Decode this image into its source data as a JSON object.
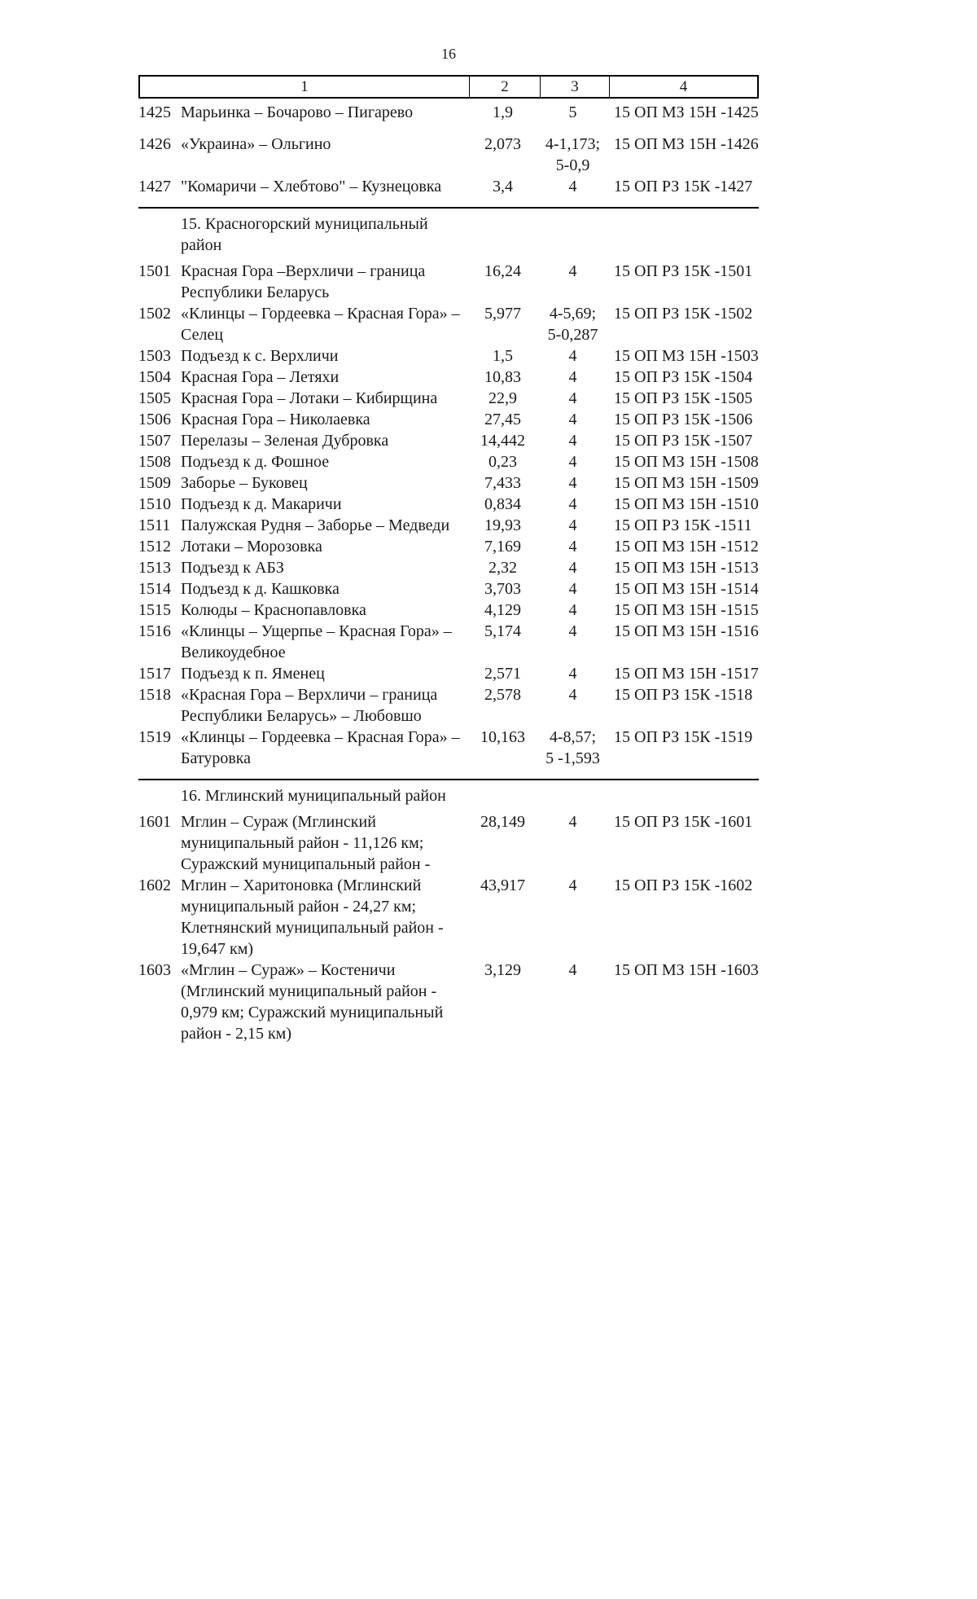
{
  "page": {
    "number": "16"
  },
  "table": {
    "columns": [
      "1",
      "2",
      "3",
      "4"
    ],
    "rows": [
      {
        "id": "1425",
        "name": "Марьинка – Бочарово – Пигарево",
        "length": "1,9",
        "category": "5",
        "reg": "15 ОП МЗ 15Н -1425"
      },
      {
        "id": "1426",
        "name": "«Украина» – Ольгино",
        "length": "2,073",
        "category": "4-1,173;\n5-0,9",
        "reg": "15 ОП МЗ 15Н -1426"
      },
      {
        "id": "1427",
        "name": "\"Комаричи – Хлебтово\" – Кузнецовка",
        "length": "3,4",
        "category": "4",
        "reg": "15 ОП РЗ 15К -1427"
      },
      {
        "section": "15. Красногорский муниципальный\nрайон"
      },
      {
        "id": "1501",
        "name": "Красная Гора –Верхличи – граница\nРеспублики Беларусь",
        "length": "16,24",
        "category": "4",
        "reg": "15 ОП РЗ 15К -1501"
      },
      {
        "id": "1502",
        "name": "«Клинцы – Гордеевка – Красная Гора» –\nСелец",
        "length": "5,977",
        "category": "4-5,69;\n5-0,287",
        "reg": "15 ОП РЗ 15К -1502"
      },
      {
        "id": "1503",
        "name": "Подъезд к с. Верхличи",
        "length": "1,5",
        "category": "4",
        "reg": "15 ОП МЗ 15Н -1503"
      },
      {
        "id": "1504",
        "name": "Красная Гора – Летяхи",
        "length": "10,83",
        "category": "4",
        "reg": "15 ОП РЗ 15К -1504"
      },
      {
        "id": "1505",
        "name": "Красная Гора – Лотаки – Кибирщина",
        "length": "22,9",
        "category": "4",
        "reg": "15 ОП РЗ 15К -1505"
      },
      {
        "id": "1506",
        "name": "Красная Гора – Николаевка",
        "length": "27,45",
        "category": "4",
        "reg": "15 ОП РЗ 15К -1506"
      },
      {
        "id": "1507",
        "name": "Перелазы – Зеленая Дубровка",
        "length": "14,442",
        "category": "4",
        "reg": "15 ОП РЗ 15К -1507"
      },
      {
        "id": "1508",
        "name": "Подъезд к д. Фошное",
        "length": "0,23",
        "category": "4",
        "reg": "15 ОП МЗ 15Н -1508"
      },
      {
        "id": "1509",
        "name": "Заборье – Буковец",
        "length": "7,433",
        "category": "4",
        "reg": "15 ОП МЗ 15Н -1509"
      },
      {
        "id": "1510",
        "name": "Подъезд к д. Макаричи",
        "length": "0,834",
        "category": "4",
        "reg": "15 ОП МЗ 15Н -1510"
      },
      {
        "id": "1511",
        "name": "Палужская Рудня – Заборье – Медведи",
        "length": "19,93",
        "category": "4",
        "reg": "15 ОП РЗ 15К -1511"
      },
      {
        "id": "1512",
        "name": "Лотаки – Морозовка",
        "length": "7,169",
        "category": "4",
        "reg": "15 ОП МЗ 15Н -1512"
      },
      {
        "id": "1513",
        "name": "Подъезд к АБЗ",
        "length": "2,32",
        "category": "4",
        "reg": "15 ОП МЗ 15Н -1513"
      },
      {
        "id": "1514",
        "name": "Подъезд к д. Кашковка",
        "length": "3,703",
        "category": "4",
        "reg": "15 ОП МЗ 15Н -1514"
      },
      {
        "id": "1515",
        "name": "Колюды – Краснопавловка",
        "length": "4,129",
        "category": "4",
        "reg": "15 ОП МЗ 15Н -1515"
      },
      {
        "id": "1516",
        "name": "«Клинцы – Ущерпье – Красная Гора» –\nВеликоудебное",
        "length": "5,174",
        "category": "4",
        "reg": "15 ОП МЗ 15Н -1516"
      },
      {
        "id": "1517",
        "name": "Подъезд к п. Яменец",
        "length": "2,571",
        "category": "4",
        "reg": "15 ОП МЗ 15Н -1517"
      },
      {
        "id": "1518",
        "name": "«Красная Гора – Верхличи – граница\nРеспублики Беларусь» – Любовшо",
        "length": "2,578",
        "category": "4",
        "reg": "15 ОП РЗ 15К -1518"
      },
      {
        "id": "1519",
        "name": "«Клинцы – Гордеевка – Красная Гора» –\nБатуровка",
        "length": "10,163",
        "category": "4-8,57;\n5 -1,593",
        "reg": "15 ОП РЗ 15К -1519"
      },
      {
        "section": "16. Мглинский  муниципальный район"
      },
      {
        "id": "1601",
        "name": "Мглин – Сураж (Мглинский\nмуниципальный район - 11,126 км;\nСуражский муниципальный район -",
        "length": "28,149",
        "category": "4",
        "reg": "15 ОП РЗ 15К -1601"
      },
      {
        "id": "1602",
        "name": "Мглин – Харитоновка (Мглинский\nмуниципальный район - 24,27 км;\nКлетнянский муниципальный район -\n19,647 км)",
        "length": "43,917",
        "category": "4",
        "reg": "15 ОП РЗ 15К -1602"
      },
      {
        "id": "1603",
        "name": "«Мглин – Сураж» – Костеничи\n(Мглинский муниципальный район -\n0,979 км; Суражский муниципальный\nрайон - 2,15 км)",
        "length": "3,129",
        "category": "4",
        "reg": "15 ОП МЗ 15Н -1603"
      }
    ]
  }
}
